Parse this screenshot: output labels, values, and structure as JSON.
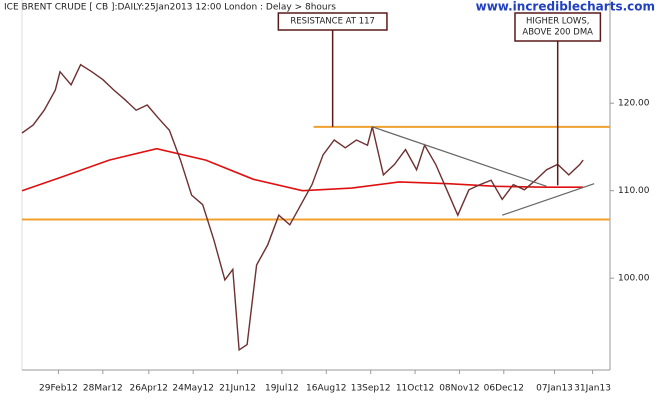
{
  "chart_data": {
    "type": "line",
    "title": "ICE BRENT CRUDE [ CB ]:DAILY:25Jan2013 12:00 London : Delay > 8hours",
    "watermark": "www.incrediblecharts.com",
    "xlim": [
      "2012-02-06",
      "2013-02-11"
    ],
    "ylim": [
      89.5,
      131.8
    ],
    "xticks": [
      {
        "value": "2012-02-29",
        "label": "29Feb12"
      },
      {
        "value": "2012-03-28",
        "label": "28Mar12"
      },
      {
        "value": "2012-04-26",
        "label": "26Apr12"
      },
      {
        "value": "2012-05-24",
        "label": "24May12"
      },
      {
        "value": "2012-06-21",
        "label": "21Jun12"
      },
      {
        "value": "2012-07-19",
        "label": "19Jul12"
      },
      {
        "value": "2012-08-16",
        "label": "16Aug12"
      },
      {
        "value": "2012-09-13",
        "label": "13Sep12"
      },
      {
        "value": "2012-10-11",
        "label": "11Oct12"
      },
      {
        "value": "2012-11-08",
        "label": "08Nov12"
      },
      {
        "value": "2012-12-06",
        "label": "06Dec12"
      },
      {
        "value": "2013-01-07",
        "label": "07Jan13"
      },
      {
        "value": "2013-01-31",
        "label": "31Jan13"
      }
    ],
    "yticks": [
      {
        "value": 100,
        "label": "100.00"
      },
      {
        "value": 110,
        "label": "110.00"
      },
      {
        "value": 120,
        "label": "120.00"
      }
    ],
    "series": [
      {
        "color": "#6e3030",
        "x": [
          "2012-02-06",
          "2012-02-13",
          "2012-02-20",
          "2012-02-27",
          "2012-03-01",
          "2012-03-08",
          "2012-03-14",
          "2012-03-21",
          "2012-03-28",
          "2012-04-04",
          "2012-04-11",
          "2012-04-18",
          "2012-04-25",
          "2012-05-02",
          "2012-05-09",
          "2012-05-16",
          "2012-05-23",
          "2012-05-30",
          "2012-06-06",
          "2012-06-13",
          "2012-06-18",
          "2012-06-22",
          "2012-06-27",
          "2012-07-03",
          "2012-07-10",
          "2012-07-17",
          "2012-07-24",
          "2012-07-31",
          "2012-08-07",
          "2012-08-14",
          "2012-08-21",
          "2012-08-28",
          "2012-09-04",
          "2012-09-11",
          "2012-09-14",
          "2012-09-21",
          "2012-09-28",
          "2012-10-05",
          "2012-10-12",
          "2012-10-17",
          "2012-10-24",
          "2012-10-31",
          "2012-11-07",
          "2012-11-14",
          "2012-11-21",
          "2012-11-28",
          "2012-12-05",
          "2012-12-12",
          "2012-12-19",
          "2012-12-26",
          "2013-01-02",
          "2013-01-09",
          "2013-01-16",
          "2013-01-23",
          "2013-01-25"
        ],
        "values": [
          116.6,
          117.5,
          119.2,
          121.5,
          123.6,
          122.1,
          124.4,
          123.6,
          122.7,
          121.5,
          120.4,
          119.2,
          119.8,
          118.3,
          116.9,
          113.5,
          109.5,
          108.4,
          104.4,
          99.8,
          101,
          91.8,
          92.4,
          101.5,
          103.8,
          107.2,
          106.1,
          108.4,
          110.7,
          114.1,
          115.8,
          114.9,
          115.8,
          115.2,
          117.3,
          111.8,
          113,
          114.7,
          112.4,
          115.2,
          113,
          110.1,
          107.2,
          110.1,
          110.7,
          111.2,
          109,
          110.7,
          110.1,
          111.2,
          112.4,
          113,
          111.8,
          113,
          113.5
        ]
      },
      {
        "color": "#e01010",
        "x": [
          "2012-02-06",
          "2012-03-01",
          "2012-04-01",
          "2012-05-01",
          "2012-06-01",
          "2012-07-01",
          "2012-08-01",
          "2012-09-01",
          "2012-10-01",
          "2012-11-01",
          "2012-12-01",
          "2013-01-01",
          "2013-01-25"
        ],
        "values": [
          110.0,
          111.5,
          113.5,
          114.8,
          113.5,
          111.3,
          110.0,
          110.3,
          111.0,
          110.8,
          110.5,
          110.4,
          110.4
        ]
      }
    ],
    "hlines": [
      {
        "value": 117.3,
        "from": "2012-08-08",
        "color": "#f0a030"
      },
      {
        "value": 106.7,
        "from": "2012-02-06",
        "color": "#f0a030"
      }
    ],
    "trendlines": [
      {
        "x": [
          "2012-09-14",
          "2013-01-02"
        ],
        "y": [
          117.3,
          110.5
        ],
        "color": "#666666"
      },
      {
        "x": [
          "2012-12-05",
          "2013-02-01"
        ],
        "y": [
          107.2,
          110.8
        ],
        "color": "#666666"
      }
    ],
    "annotations": [
      {
        "lines": [
          "RESISTANCE AT 117"
        ],
        "x": "2012-08-20",
        "y": 117.3
      },
      {
        "lines": [
          "HIGHER LOWS,",
          "ABOVE 200 DMA"
        ],
        "x": "2013-01-09",
        "y": 110.6
      }
    ]
  }
}
